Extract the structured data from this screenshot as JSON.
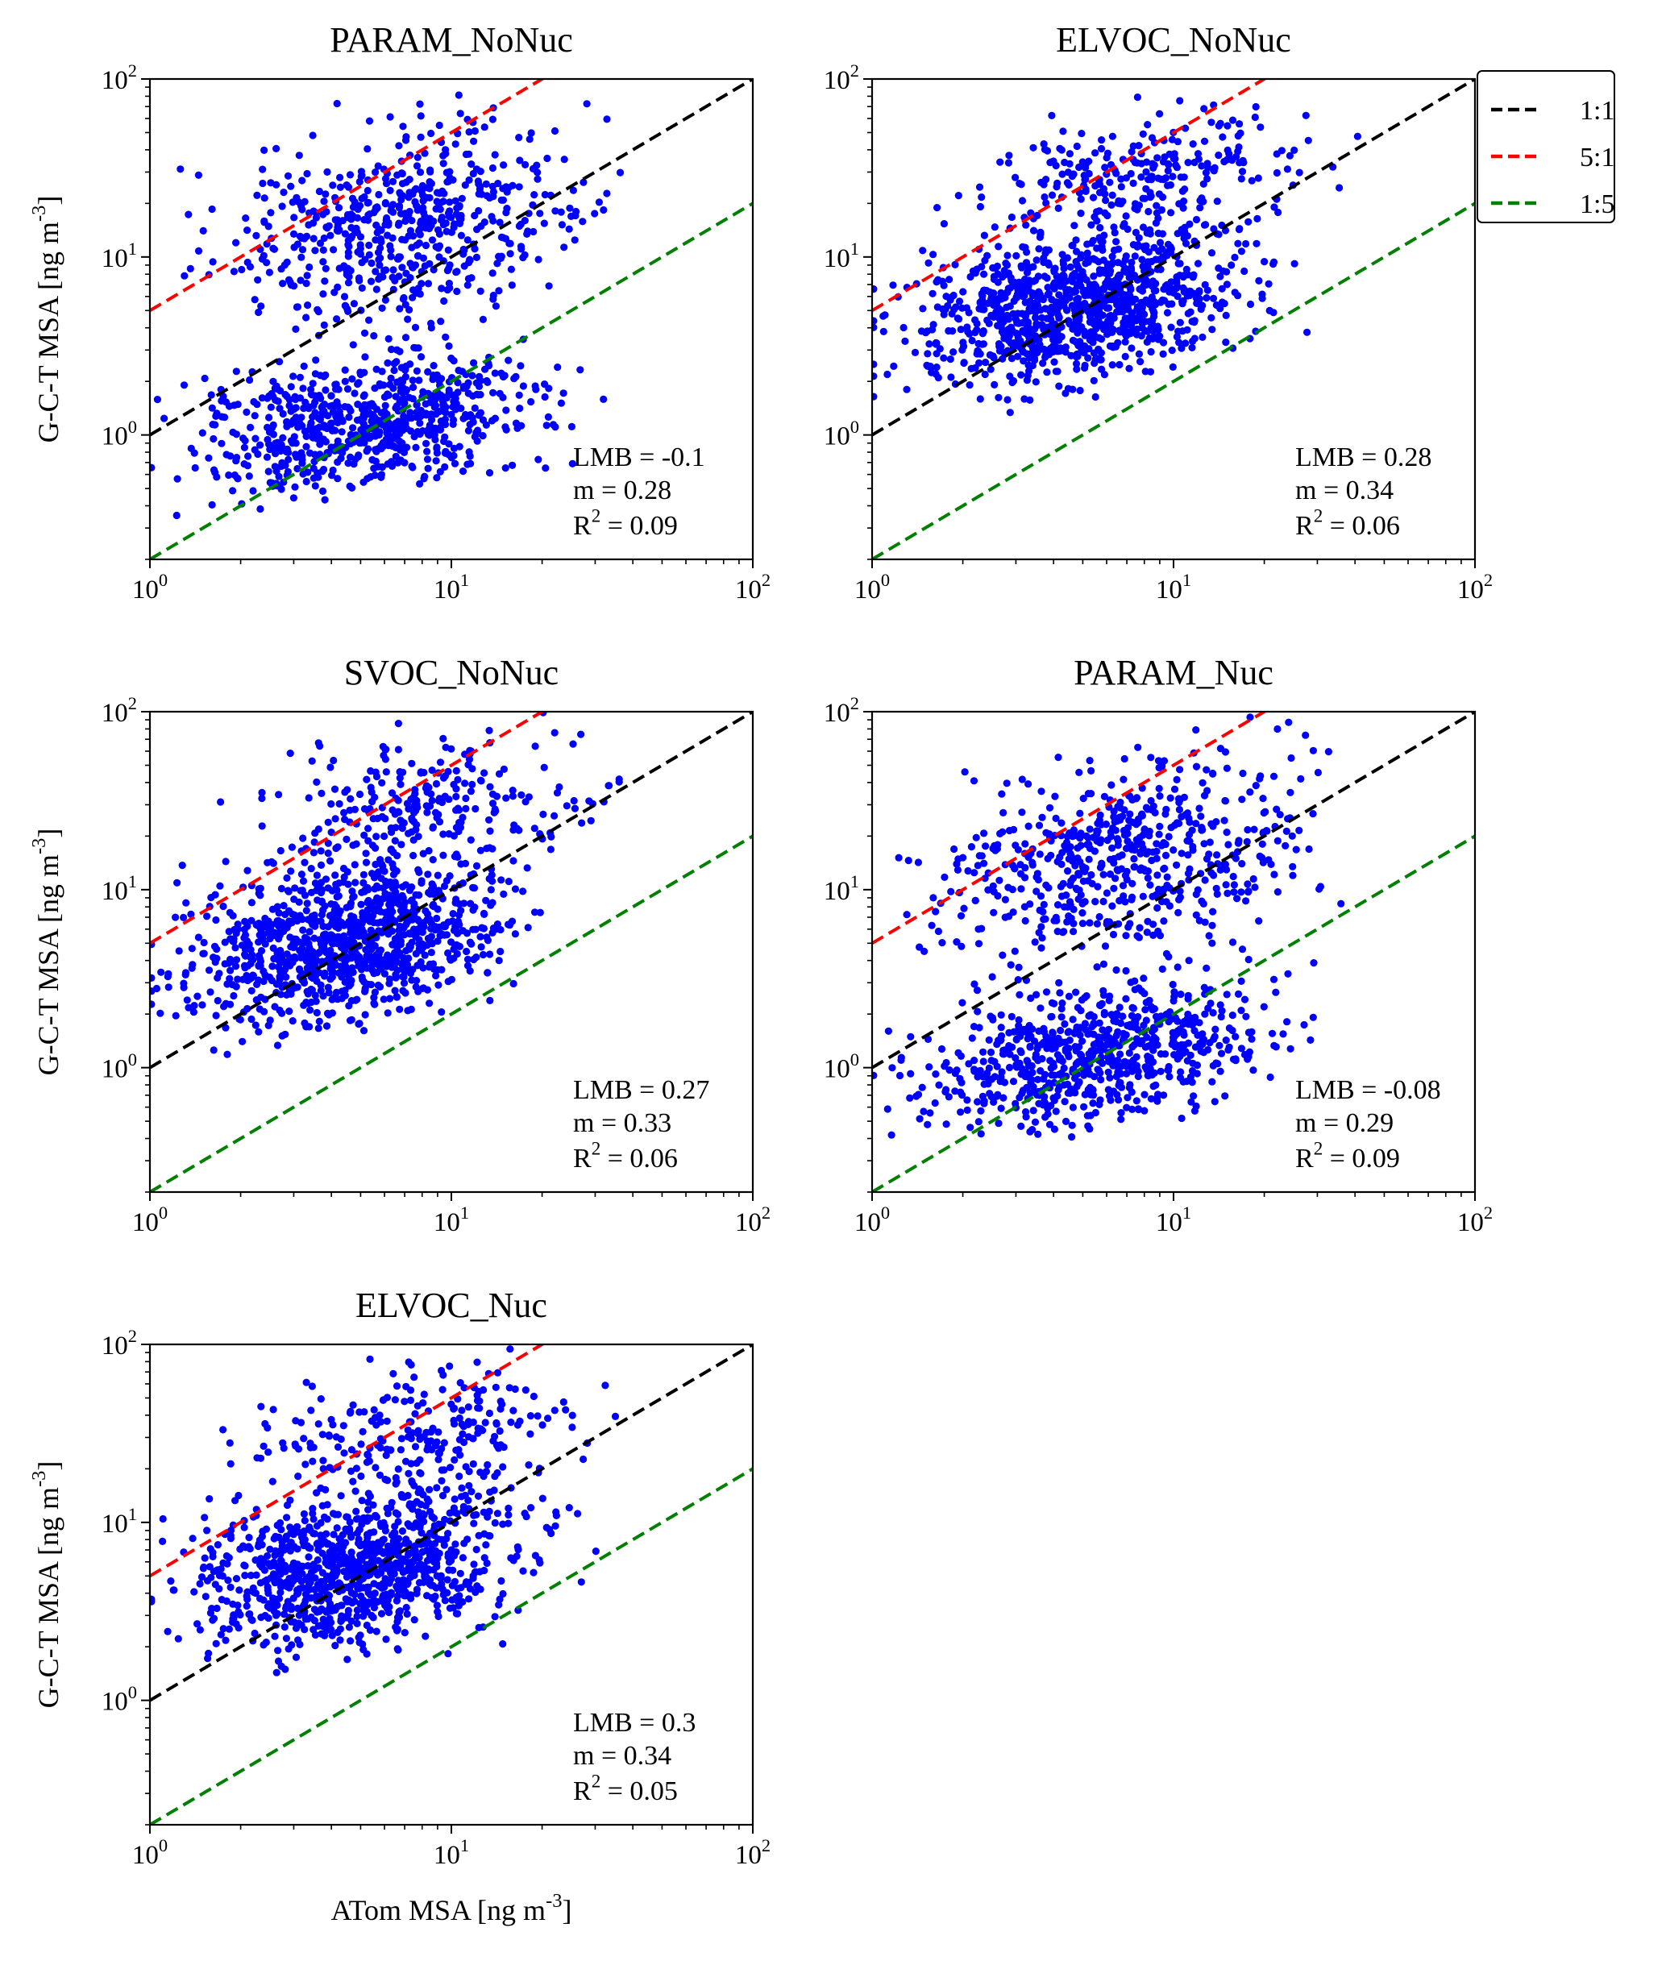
{
  "chart_data": [
    {
      "type": "scatter",
      "title": "PARAM_NoNuc",
      "xlabel": "",
      "ylabel": "G-C-T MSA [ng m^-3]",
      "xscale": "log",
      "yscale": "log",
      "xlim": [
        1,
        100
      ],
      "ylim": [
        0.2,
        100
      ],
      "x_ticks": [
        1,
        10,
        100
      ],
      "y_ticks": [
        1,
        10,
        100
      ],
      "tick_labels": [
        "10^0",
        "10^1",
        "10^2"
      ],
      "stats": {
        "lmb": "LMB = -0.1",
        "m": "m = 0.28",
        "r2": "R^2 = 0.09"
      },
      "reference_lines": [
        {
          "label": "1:1",
          "ratio": 1
        },
        {
          "label": "5:1",
          "ratio": 5
        },
        {
          "label": "1:5",
          "ratio": 0.2
        }
      ],
      "clusters": [
        {
          "x_log": [
            0.0,
            1.45
          ],
          "y_log": [
            -0.4,
            0.55
          ],
          "share": 0.55
        },
        {
          "x_log": [
            0.1,
            1.6
          ],
          "y_log": [
            0.5,
            1.85
          ],
          "share": 0.45
        }
      ],
      "n_points": 1300
    },
    {
      "type": "scatter",
      "title": "ELVOC_NoNuc",
      "xlabel": "",
      "ylabel": "",
      "xscale": "log",
      "yscale": "log",
      "xlim": [
        1,
        100
      ],
      "ylim": [
        0.2,
        100
      ],
      "x_ticks": [
        1,
        10,
        100
      ],
      "y_ticks": [
        1,
        10,
        100
      ],
      "tick_labels": [
        "10^0",
        "10^1",
        "10^2"
      ],
      "stats": {
        "lmb": "LMB = 0.28",
        "m": "m = 0.34",
        "r2": "R^2 = 0.06"
      },
      "reference_lines": [
        {
          "label": "1:1",
          "ratio": 1
        },
        {
          "label": "5:1",
          "ratio": 5
        },
        {
          "label": "1:5",
          "ratio": 0.2
        }
      ],
      "clusters": [
        {
          "x_log": [
            0.0,
            1.35
          ],
          "y_log": [
            0.2,
            1.25
          ],
          "share": 0.8
        },
        {
          "x_log": [
            0.2,
            1.6
          ],
          "y_log": [
            1.0,
            1.95
          ],
          "share": 0.2
        }
      ],
      "n_points": 1300
    },
    {
      "type": "scatter",
      "title": "SVOC_NoNuc",
      "xlabel": "",
      "ylabel": "G-C-T MSA [ng m^-3]",
      "xscale": "log",
      "yscale": "log",
      "xlim": [
        1,
        100
      ],
      "ylim": [
        0.2,
        100
      ],
      "x_ticks": [
        1,
        10,
        100
      ],
      "y_ticks": [
        1,
        10,
        100
      ],
      "tick_labels": [
        "10^0",
        "10^1",
        "10^2"
      ],
      "stats": {
        "lmb": "LMB = 0.27",
        "m": "m = 0.33",
        "r2": "R^2 = 0.06"
      },
      "reference_lines": [
        {
          "label": "1:1",
          "ratio": 1
        },
        {
          "label": "5:1",
          "ratio": 5
        },
        {
          "label": "1:5",
          "ratio": 0.2
        }
      ],
      "clusters": [
        {
          "x_log": [
            0.0,
            1.35
          ],
          "y_log": [
            0.2,
            1.25
          ],
          "share": 0.8
        },
        {
          "x_log": [
            0.2,
            1.6
          ],
          "y_log": [
            1.0,
            1.95
          ],
          "share": 0.2
        }
      ],
      "n_points": 1300
    },
    {
      "type": "scatter",
      "title": "PARAM_Nuc",
      "xlabel": "",
      "ylabel": "",
      "xscale": "log",
      "yscale": "log",
      "xlim": [
        1,
        100
      ],
      "ylim": [
        0.2,
        100
      ],
      "x_ticks": [
        1,
        10,
        100
      ],
      "y_ticks": [
        1,
        10,
        100
      ],
      "tick_labels": [
        "10^0",
        "10^1",
        "10^2"
      ],
      "stats": {
        "lmb": "LMB = -0.08",
        "m": "m = 0.29",
        "r2": "R^2 = 0.09"
      },
      "reference_lines": [
        {
          "label": "1:1",
          "ratio": 1
        },
        {
          "label": "5:1",
          "ratio": 5
        },
        {
          "label": "1:5",
          "ratio": 0.2
        }
      ],
      "clusters": [
        {
          "x_log": [
            0.0,
            1.45
          ],
          "y_log": [
            -0.4,
            0.55
          ],
          "share": 0.55
        },
        {
          "x_log": [
            0.1,
            1.6
          ],
          "y_log": [
            0.5,
            1.85
          ],
          "share": 0.45
        }
      ],
      "n_points": 1300
    },
    {
      "type": "scatter",
      "title": "ELVOC_Nuc",
      "xlabel": "ATom MSA [ng m^-3]",
      "ylabel": "G-C-T MSA [ng m^-3]",
      "xscale": "log",
      "yscale": "log",
      "xlim": [
        1,
        100
      ],
      "ylim": [
        0.2,
        100
      ],
      "x_ticks": [
        1,
        10,
        100
      ],
      "y_ticks": [
        1,
        10,
        100
      ],
      "tick_labels": [
        "10^0",
        "10^1",
        "10^2"
      ],
      "stats": {
        "lmb": "LMB = 0.3",
        "m": "m = 0.34",
        "r2": "R^2 = 0.05"
      },
      "reference_lines": [
        {
          "label": "1:1",
          "ratio": 1
        },
        {
          "label": "5:1",
          "ratio": 5
        },
        {
          "label": "1:5",
          "ratio": 0.2
        }
      ],
      "clusters": [
        {
          "x_log": [
            0.0,
            1.35
          ],
          "y_log": [
            0.2,
            1.25
          ],
          "share": 0.8
        },
        {
          "x_log": [
            0.2,
            1.6
          ],
          "y_log": [
            1.0,
            1.95
          ],
          "share": 0.2
        }
      ],
      "n_points": 1300
    }
  ],
  "legend": {
    "placement": "right of top-right panel",
    "entries": [
      {
        "label": "1:1",
        "color": "#000000"
      },
      {
        "label": "5:1",
        "color": "#ff0000"
      },
      {
        "label": "1:5",
        "color": "#008000"
      }
    ]
  },
  "colors": {
    "points": "#0000ff",
    "line_1_1": "#000000",
    "line_5_1": "#ff0000",
    "line_1_5": "#008000"
  }
}
